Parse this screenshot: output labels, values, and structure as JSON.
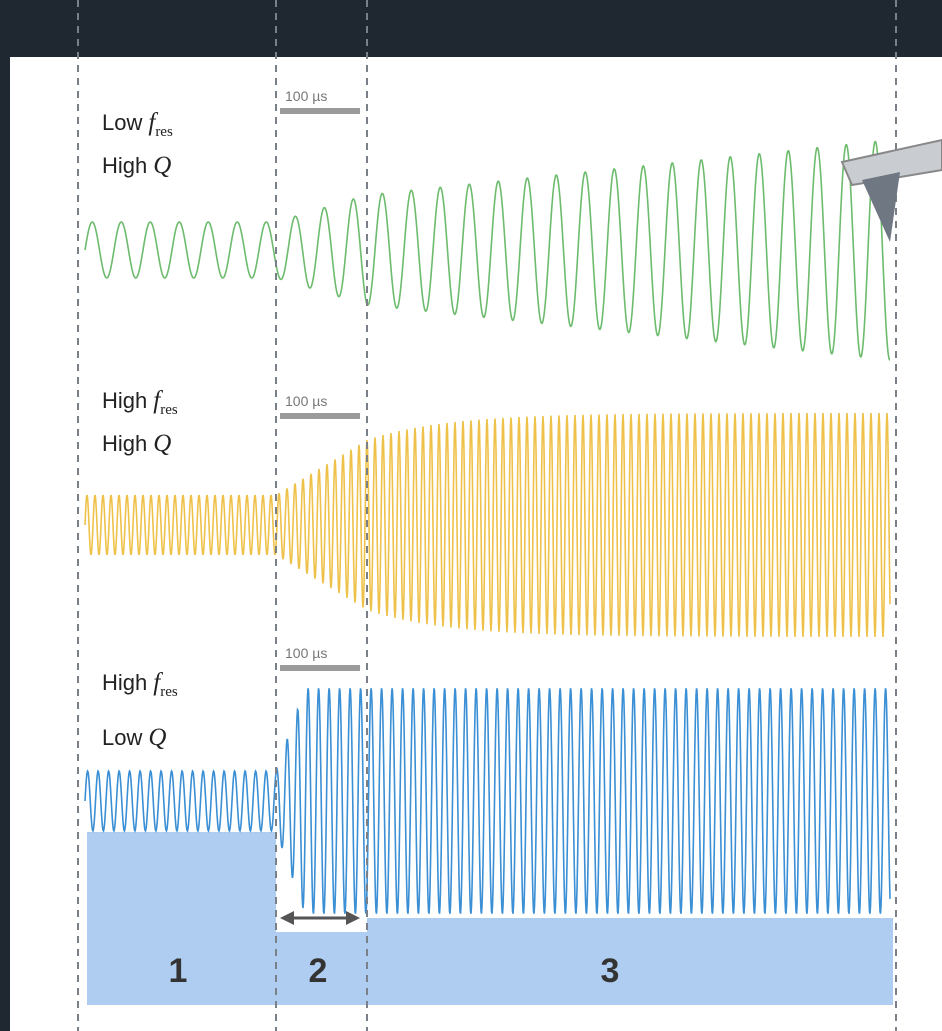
{
  "panels": [
    {
      "line1": {
        "word": "Low",
        "symbol": "f",
        "subscript": "res"
      },
      "line2": {
        "word": "High",
        "symbol": "Q"
      },
      "scale_bar": "100 µs"
    },
    {
      "line1": {
        "word": "High",
        "symbol": "f",
        "subscript": "res"
      },
      "line2": {
        "word": "High",
        "symbol": "Q"
      },
      "scale_bar": "100 µs"
    },
    {
      "line1": {
        "word": "High",
        "symbol": "f",
        "subscript": "res"
      },
      "line2": {
        "word": "Low",
        "symbol": "Q"
      },
      "scale_bar": "100 µs"
    }
  ],
  "phases": [
    "1",
    "2",
    "3"
  ]
}
